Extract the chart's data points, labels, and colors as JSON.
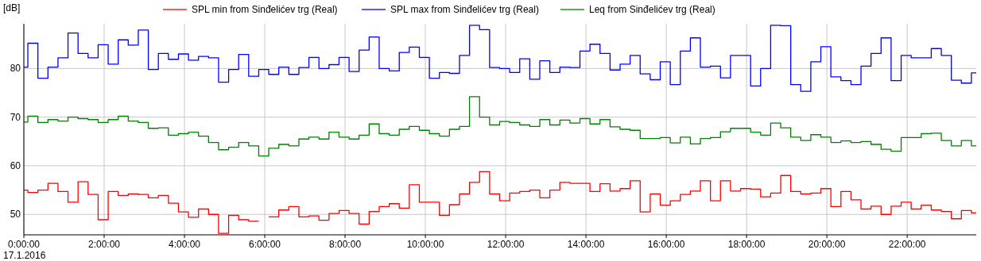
{
  "chart_data": {
    "type": "step",
    "ylabel": "[dB]",
    "annotations": [
      "17.1.2016"
    ],
    "x": [
      0,
      0.1,
      0.35,
      0.6,
      0.85,
      1.1,
      1.35,
      1.6,
      1.85,
      2.1,
      2.35,
      2.6,
      2.85,
      3.1,
      3.35,
      3.6,
      3.85,
      4.1,
      4.35,
      4.6,
      4.85,
      5.1,
      5.35,
      5.6,
      5.85,
      6.1,
      6.35,
      6.6,
      6.85,
      7.1,
      7.35,
      7.6,
      7.85,
      8.1,
      8.35,
      8.6,
      8.85,
      9.1,
      9.35,
      9.6,
      9.85,
      10.1,
      10.35,
      10.6,
      10.85,
      11.1,
      11.35,
      11.6,
      11.85,
      12.1,
      12.35,
      12.6,
      12.85,
      13.1,
      13.35,
      13.6,
      13.85,
      14.1,
      14.35,
      14.6,
      14.85,
      15.1,
      15.35,
      15.6,
      15.85,
      16.1,
      16.35,
      16.6,
      16.85,
      17.1,
      17.35,
      17.6,
      17.85,
      18.1,
      18.35,
      18.6,
      18.85,
      19.1,
      19.35,
      19.6,
      19.85,
      20.1,
      20.35,
      20.6,
      20.85,
      21.1,
      21.35,
      21.6,
      21.85,
      22.1,
      22.35,
      22.6,
      22.85,
      23.1,
      23.35,
      23.6,
      23.72
    ],
    "series": [
      {
        "name": "SPL min from Sinđelićev trg (Real)",
        "color": "#ff0000",
        "values": [
          55.0,
          54.5,
          55.0,
          56.4,
          54.7,
          52.5,
          56.7,
          54.1,
          48.9,
          54.7,
          53.9,
          54.2,
          54.1,
          53.4,
          53.9,
          52.3,
          50.5,
          49.4,
          51.1,
          50.0,
          46.1,
          49.8,
          48.9,
          48.6,
          null,
          49.5,
          50.9,
          51.6,
          49.5,
          49.7,
          48.8,
          50.2,
          50.8,
          50.2,
          48.0,
          50.6,
          51.6,
          52.2,
          51.3,
          56.1,
          52.5,
          52.5,
          49.8,
          52.0,
          54.2,
          56.6,
          58.8,
          54.2,
          52.8,
          54.4,
          54.7,
          55.0,
          53.4,
          55.0,
          56.6,
          56.4,
          56.4,
          54.7,
          56.3,
          54.8,
          55.3,
          56.9,
          50.5,
          54.2,
          51.9,
          52.8,
          54.1,
          54.8,
          56.9,
          52.8,
          56.9,
          54.8,
          55.3,
          55.2,
          53.6,
          54.4,
          58.0,
          54.7,
          54.2,
          54.4,
          55.3,
          51.6,
          54.7,
          53.0,
          51.1,
          51.7,
          50.0,
          51.7,
          52.5,
          51.1,
          51.9,
          50.9,
          50.6,
          49.1,
          50.8,
          50.3,
          50.3
        ]
      },
      {
        "name": "SPL max from Sinđelićev trg (Real)",
        "color": "#0000ff",
        "values": [
          80.3,
          85.2,
          78.0,
          80.3,
          82.2,
          87.3,
          83.1,
          82.2,
          84.9,
          80.9,
          85.9,
          84.8,
          87.9,
          79.8,
          83.1,
          81.9,
          83.0,
          81.7,
          82.5,
          82.2,
          77.2,
          79.8,
          82.9,
          78.4,
          79.8,
          78.8,
          80.3,
          78.8,
          80.2,
          82.3,
          80.0,
          80.8,
          82.3,
          79.4,
          83.8,
          86.5,
          80.0,
          79.5,
          83.3,
          84.4,
          82.3,
          78.0,
          79.2,
          79.0,
          82.7,
          88.9,
          88.0,
          80.2,
          80.0,
          79.2,
          82.0,
          77.8,
          81.6,
          79.2,
          80.3,
          80.2,
          83.6,
          85.0,
          83.1,
          79.7,
          80.9,
          82.7,
          78.9,
          77.7,
          81.4,
          76.7,
          83.6,
          86.3,
          80.3,
          80.5,
          78.1,
          82.7,
          82.7,
          76.4,
          80.0,
          88.9,
          88.8,
          76.7,
          75.3,
          81.4,
          84.5,
          78.3,
          77.5,
          76.7,
          80.5,
          83.1,
          86.3,
          77.5,
          82.7,
          82.2,
          82.2,
          84.1,
          82.7,
          77.6,
          77.0,
          79.1,
          79.1
        ]
      },
      {
        "name": "Leq from Sinđelićev trg (Real)",
        "color": "#008000",
        "values": [
          69.0,
          70.2,
          68.9,
          69.5,
          69.2,
          70.0,
          69.7,
          69.5,
          68.9,
          69.5,
          70.2,
          69.2,
          68.9,
          67.7,
          67.8,
          66.3,
          66.6,
          66.9,
          66.1,
          64.8,
          63.3,
          63.8,
          64.8,
          64.1,
          62.0,
          63.6,
          64.4,
          64.1,
          65.5,
          65.9,
          65.5,
          66.9,
          65.9,
          65.5,
          66.3,
          68.6,
          66.6,
          66.3,
          67.5,
          68.1,
          67.3,
          66.6,
          66.1,
          67.5,
          68.1,
          74.2,
          70.0,
          68.4,
          69.1,
          68.9,
          68.4,
          68.1,
          69.5,
          68.4,
          69.4,
          68.8,
          69.7,
          68.6,
          69.5,
          68.0,
          67.5,
          67.3,
          65.6,
          65.6,
          65.8,
          64.7,
          65.9,
          64.5,
          65.6,
          65.8,
          67.0,
          67.7,
          67.7,
          66.9,
          66.3,
          68.8,
          67.8,
          65.9,
          65.2,
          66.4,
          65.9,
          64.8,
          65.1,
          64.8,
          65.0,
          64.4,
          63.4,
          63.0,
          65.8,
          65.8,
          66.6,
          66.7,
          65.2,
          64.1,
          65.2,
          64.1,
          64.1
        ]
      }
    ],
    "xlim": [
      0,
      23.72
    ],
    "xticks": [
      {
        "value": 0,
        "label": "0:00:00"
      },
      {
        "value": 2,
        "label": "2:00:00"
      },
      {
        "value": 4,
        "label": "4:00:00"
      },
      {
        "value": 6,
        "label": "6:00:00"
      },
      {
        "value": 8,
        "label": "8:00:00"
      },
      {
        "value": 10,
        "label": "10:00:00"
      },
      {
        "value": 12,
        "label": "12:00:00"
      },
      {
        "value": 14,
        "label": "14:00:00"
      },
      {
        "value": 16,
        "label": "16:00:00"
      },
      {
        "value": 18,
        "label": "18:00:00"
      },
      {
        "value": 20,
        "label": "20:00:00"
      },
      {
        "value": 22,
        "label": "22:00:00"
      }
    ],
    "ylim": [
      45.8,
      89.2
    ],
    "yticks": [
      50,
      60,
      70,
      80
    ],
    "grid": true,
    "legend": "top"
  }
}
